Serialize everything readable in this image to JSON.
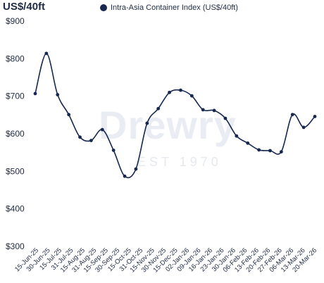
{
  "chart_data": {
    "type": "line",
    "unit_label": "US$/40ft",
    "series": [
      {
        "name": "Intra-Asia Container Index (US$/40ft)",
        "color": "#16284f",
        "values": [
          707,
          814,
          704,
          651,
          591,
          582,
          611,
          556,
          487,
          506,
          628,
          667,
          710,
          716,
          701,
          664,
          662,
          641,
          594,
          575,
          557,
          555,
          552,
          651,
          617,
          646
        ]
      }
    ],
    "categories": [
      "15-Jun-25",
      "30-Jun-25",
      "15-Jul-25",
      "31-Jul-25",
      "15-Aug-25",
      "31-Aug-25",
      "15-Sep-25",
      "30-Sep-25",
      "15-Oct-25",
      "31-Oct-25",
      "15-Nov-25",
      "30-Nov-25",
      "15-Dec-25",
      "31-Dec-25",
      "02-Jan-26",
      "09-Jan-26",
      "16-Jan-26",
      "23-Jan-26",
      "30-Jan-26",
      "06-Feb-26",
      "13-Feb-26",
      "20-Feb-26",
      "27-Feb-26",
      "06-Mar-26",
      "13-Mar-26",
      "20-Mar-26"
    ],
    "x_tick_labels": [
      "15-Jun-25",
      "30-Jun-25",
      "15-Jul-25",
      "31-Jul-25",
      "15-Aug-25",
      "31-Aug-25",
      "15-Sep-25",
      "30-Sep-25",
      "15-Oct-25",
      "31-Oct-25",
      "15-Nov-25",
      "30-Nov-25",
      "15-Dec-25",
      "02-Jan-26",
      "09-Jan-26",
      "16-Jan-26",
      "23-Jan-26",
      "30-Jan-26",
      "06-Feb-26",
      "13-Feb-26",
      "20-Feb-26",
      "27-Feb-26",
      "06-Mar-26",
      "13-Mar-26",
      "20-Mar-26"
    ],
    "y_ticks": [
      300,
      400,
      500,
      600,
      700,
      800,
      900
    ],
    "y_tick_labels": [
      "$300",
      "$400",
      "$500",
      "$600",
      "$700",
      "$800",
      "$900"
    ],
    "ylim": [
      300,
      900
    ],
    "grid": false,
    "legend_position": "top-center"
  },
  "watermark": {
    "brand": "Drewry",
    "established": "EST 1970"
  }
}
